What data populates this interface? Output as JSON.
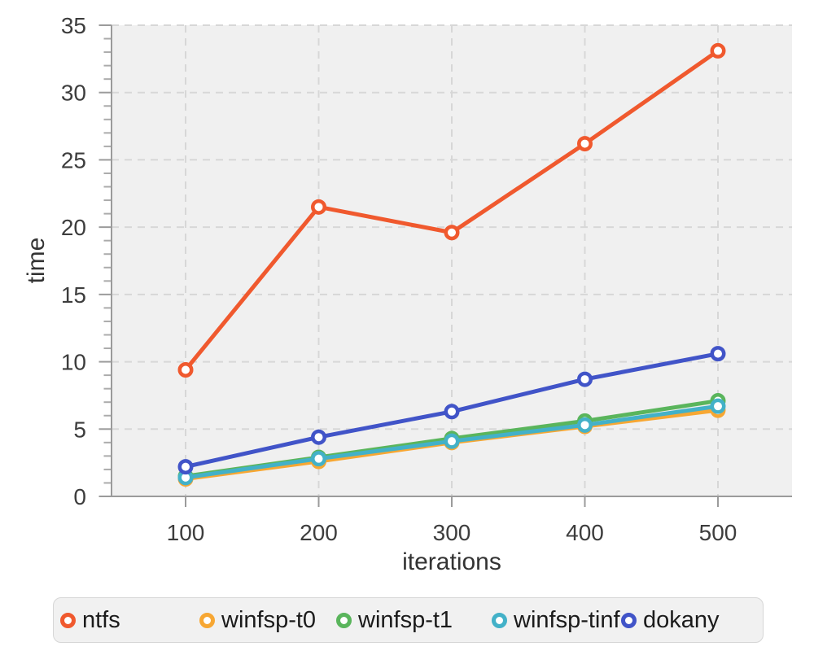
{
  "chart_data": {
    "type": "line",
    "title": "",
    "xlabel": "iterations",
    "ylabel": "time",
    "x": [
      100,
      200,
      300,
      400,
      500
    ],
    "x_tick_labels": [
      "100",
      "200",
      "300",
      "400",
      "500"
    ],
    "y_ticks": [
      0,
      5,
      10,
      15,
      20,
      25,
      30,
      35
    ],
    "ylim": [
      0,
      35
    ],
    "grid": true,
    "gridline_style": "dashed",
    "marker": "open-circle",
    "legend_position": "bottom",
    "series": [
      {
        "name": "ntfs",
        "color": "#f0592e",
        "values": [
          9.4,
          21.5,
          19.6,
          26.2,
          33.1
        ]
      },
      {
        "name": "winfsp-t0",
        "color": "#f7a733",
        "values": [
          1.3,
          2.6,
          4.0,
          5.2,
          6.4
        ]
      },
      {
        "name": "winfsp-t1",
        "color": "#5ab55c",
        "values": [
          1.5,
          2.9,
          4.3,
          5.6,
          7.1
        ]
      },
      {
        "name": "winfsp-tinf",
        "color": "#43b1c8",
        "values": [
          1.4,
          2.8,
          4.1,
          5.3,
          6.7
        ]
      },
      {
        "name": "dokany",
        "color": "#4154c8",
        "values": [
          2.2,
          4.4,
          6.3,
          8.7,
          10.6
        ]
      }
    ],
    "colors": {
      "panel_bg": "#f0f0f0",
      "gridline": "#d7d7d7",
      "axis": "#9b9b9b",
      "minor_tick": "#ababab",
      "tick_label": "#3d3d3d",
      "legend_bg": "#f1f1f1",
      "legend_border": "#d6d6d6",
      "legend_text": "#1b1b1b"
    }
  }
}
